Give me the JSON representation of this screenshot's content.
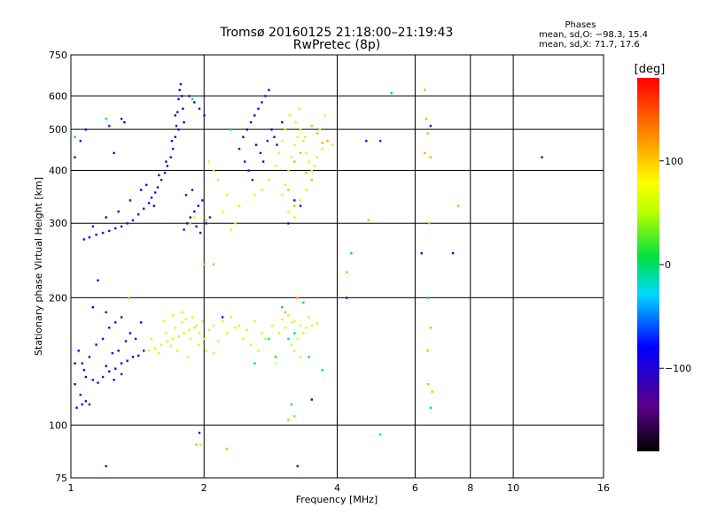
{
  "chart_data": {
    "type": "scatter",
    "title": "Tromsø 20160125 21:18:00–21:19:43",
    "subtitle": "RwPretec (8p)",
    "xlabel": "Frequency [MHz]",
    "ylabel": "Stationary phase Virtual Height [km]",
    "x_scale": "log",
    "y_scale": "log",
    "xlim": [
      1,
      16
    ],
    "ylim": [
      75,
      750
    ],
    "x_ticks": [
      1,
      2,
      4,
      6,
      8,
      10,
      16
    ],
    "y_ticks": [
      75,
      100,
      200,
      300,
      400,
      500,
      600,
      750
    ],
    "grid": true,
    "stats": {
      "header": "Phases",
      "line_o": "mean, sd,O: −98.3, 15.4",
      "line_x": "mean, sd,X:  71.7, 17.6"
    },
    "colorbar": {
      "label": "[deg]",
      "range": [
        -180,
        180
      ],
      "ticks": [
        100,
        0,
        -100
      ],
      "tick_labels": [
        "100",
        "0",
        "−100"
      ]
    },
    "series": [
      {
        "color_value": -100,
        "points": [
          [
            1.03,
            110
          ],
          [
            1.06,
            112
          ],
          [
            1.08,
            114
          ],
          [
            1.05,
            118
          ],
          [
            1.1,
            112
          ],
          [
            1.02,
            125
          ],
          [
            1.08,
            130
          ],
          [
            1.12,
            128
          ],
          [
            1.18,
            130
          ],
          [
            1.22,
            134
          ],
          [
            1.26,
            136
          ],
          [
            1.3,
            140
          ],
          [
            1.34,
            142
          ],
          [
            1.38,
            145
          ],
          [
            1.42,
            146
          ],
          [
            1.46,
            150
          ],
          [
            1.15,
            126
          ],
          [
            1.2,
            138
          ],
          [
            1.25,
            128
          ],
          [
            1.3,
            132
          ],
          [
            1.06,
            140
          ],
          [
            1.1,
            145
          ],
          [
            1.04,
            150
          ],
          [
            1.14,
            155
          ],
          [
            1.18,
            160
          ],
          [
            1.22,
            170
          ],
          [
            1.26,
            175
          ],
          [
            1.3,
            180
          ],
          [
            1.36,
            165
          ],
          [
            1.4,
            160
          ],
          [
            1.2,
            185
          ],
          [
            1.12,
            190
          ],
          [
            1.02,
            140
          ],
          [
            1.28,
            150
          ],
          [
            1.33,
            158
          ],
          [
            1.07,
            135
          ],
          [
            1.24,
            148
          ],
          [
            1.44,
            175
          ],
          [
            1.07,
            275
          ],
          [
            1.1,
            278
          ],
          [
            1.14,
            282
          ],
          [
            1.18,
            285
          ],
          [
            1.22,
            288
          ],
          [
            1.26,
            292
          ],
          [
            1.3,
            295
          ],
          [
            1.34,
            300
          ],
          [
            1.38,
            305
          ],
          [
            1.42,
            315
          ],
          [
            1.46,
            325
          ],
          [
            1.5,
            335
          ],
          [
            1.52,
            345
          ],
          [
            1.55,
            355
          ],
          [
            1.57,
            365
          ],
          [
            1.6,
            380
          ],
          [
            1.63,
            395
          ],
          [
            1.65,
            410
          ],
          [
            1.68,
            430
          ],
          [
            1.7,
            450
          ],
          [
            1.72,
            480
          ],
          [
            1.73,
            510
          ],
          [
            1.74,
            550
          ],
          [
            1.75,
            590
          ],
          [
            1.76,
            620
          ],
          [
            1.77,
            640
          ],
          [
            1.78,
            600
          ],
          [
            1.79,
            560
          ],
          [
            1.8,
            520
          ],
          [
            1.12,
            295
          ],
          [
            1.2,
            310
          ],
          [
            1.28,
            320
          ],
          [
            1.36,
            340
          ],
          [
            1.44,
            360
          ],
          [
            1.48,
            370
          ],
          [
            1.54,
            330
          ],
          [
            1.58,
            390
          ],
          [
            1.64,
            420
          ],
          [
            1.69,
            470
          ],
          [
            1.72,
            540
          ],
          [
            1.75,
            500
          ],
          [
            1.8,
            290
          ],
          [
            1.83,
            300
          ],
          [
            1.86,
            310
          ],
          [
            1.9,
            320
          ],
          [
            1.94,
            330
          ],
          [
            1.98,
            340
          ],
          [
            1.82,
            350
          ],
          [
            1.88,
            360
          ],
          [
            1.92,
            295
          ],
          [
            1.96,
            285
          ],
          [
            2.02,
            300
          ],
          [
            2.06,
            310
          ],
          [
            1.85,
            600
          ],
          [
            1.9,
            580
          ],
          [
            1.95,
            560
          ],
          [
            2.0,
            540
          ],
          [
            2.45,
            480
          ],
          [
            2.5,
            500
          ],
          [
            2.55,
            520
          ],
          [
            2.6,
            540
          ],
          [
            2.65,
            560
          ],
          [
            2.7,
            580
          ],
          [
            2.75,
            600
          ],
          [
            2.8,
            620
          ],
          [
            2.4,
            450
          ],
          [
            2.47,
            420
          ],
          [
            2.52,
            400
          ],
          [
            2.57,
            380
          ],
          [
            2.62,
            460
          ],
          [
            2.68,
            440
          ],
          [
            2.72,
            420
          ],
          [
            2.78,
            470
          ],
          [
            2.84,
            500
          ],
          [
            2.88,
            480
          ],
          [
            2.92,
            460
          ],
          [
            3.0,
            520
          ],
          [
            3.1,
            300
          ],
          [
            3.2,
            340
          ],
          [
            3.3,
            330
          ],
          [
            1.22,
            510
          ],
          [
            1.3,
            530
          ],
          [
            1.32,
            520
          ],
          [
            1.05,
            470
          ],
          [
            1.08,
            500
          ],
          [
            1.25,
            440
          ],
          [
            1.15,
            220
          ],
          [
            1.02,
            430
          ],
          [
            1.2,
            80
          ],
          [
            1.95,
            96
          ],
          [
            3.25,
            80
          ],
          [
            4.2,
            200
          ],
          [
            4.65,
            470
          ],
          [
            5.0,
            470
          ],
          [
            6.5,
            510
          ],
          [
            7.3,
            255
          ],
          [
            11.6,
            430
          ],
          [
            2.2,
            180
          ],
          [
            3.5,
            115
          ],
          [
            6.2,
            255
          ]
        ]
      },
      {
        "color_value": 60,
        "points": [
          [
            1.5,
            150
          ],
          [
            1.55,
            152
          ],
          [
            1.6,
            155
          ],
          [
            1.65,
            158
          ],
          [
            1.7,
            160
          ],
          [
            1.75,
            162
          ],
          [
            1.8,
            165
          ],
          [
            1.85,
            168
          ],
          [
            1.9,
            170
          ],
          [
            1.95,
            165
          ],
          [
            2.0,
            160
          ],
          [
            1.58,
            148
          ],
          [
            1.68,
            154
          ],
          [
            1.72,
            170
          ],
          [
            1.78,
            175
          ],
          [
            1.82,
            178
          ],
          [
            1.88,
            180
          ],
          [
            1.92,
            172
          ],
          [
            1.98,
            176
          ],
          [
            2.05,
            168
          ],
          [
            2.1,
            172
          ],
          [
            2.2,
            176
          ],
          [
            2.3,
            180
          ],
          [
            2.4,
            172
          ],
          [
            2.5,
            168
          ],
          [
            2.6,
            176
          ],
          [
            2.7,
            165
          ],
          [
            2.85,
            172
          ],
          [
            3.0,
            178
          ],
          [
            3.1,
            182
          ],
          [
            3.2,
            176
          ],
          [
            3.3,
            172
          ],
          [
            3.4,
            170
          ],
          [
            3.5,
            172
          ],
          [
            3.6,
            174
          ],
          [
            3.2,
            150
          ],
          [
            3.25,
            160
          ],
          [
            3.3,
            145
          ],
          [
            3.15,
            155
          ],
          [
            2.9,
            140
          ],
          [
            1.62,
            176
          ],
          [
            1.7,
            182
          ],
          [
            1.78,
            185
          ],
          [
            1.86,
            160
          ],
          [
            1.94,
            155
          ],
          [
            2.02,
            150
          ],
          [
            2.1,
            148
          ],
          [
            2.15,
            158
          ],
          [
            2.25,
            165
          ],
          [
            2.35,
            170
          ],
          [
            2.45,
            160
          ],
          [
            2.55,
            155
          ],
          [
            2.65,
            150
          ],
          [
            2.75,
            160
          ],
          [
            2.95,
            165
          ],
          [
            3.05,
            170
          ],
          [
            3.15,
            175
          ],
          [
            3.35,
            165
          ],
          [
            3.45,
            180
          ],
          [
            1.52,
            160
          ],
          [
            1.64,
            165
          ],
          [
            1.74,
            150
          ],
          [
            1.84,
            145
          ],
          [
            2.3,
            290
          ],
          [
            2.35,
            300
          ],
          [
            2.2,
            320
          ],
          [
            2.25,
            350
          ],
          [
            2.15,
            380
          ],
          [
            2.1,
            400
          ],
          [
            2.05,
            420
          ],
          [
            2.4,
            330
          ],
          [
            2.6,
            350
          ],
          [
            2.7,
            360
          ],
          [
            2.8,
            380
          ],
          [
            3.0,
            350
          ],
          [
            3.05,
            370
          ],
          [
            3.1,
            400
          ],
          [
            3.15,
            430
          ],
          [
            3.2,
            460
          ],
          [
            3.25,
            480
          ],
          [
            3.3,
            500
          ],
          [
            3.35,
            470
          ],
          [
            3.4,
            440
          ],
          [
            3.45,
            420
          ],
          [
            3.5,
            400
          ],
          [
            3.6,
            430
          ],
          [
            3.7,
            450
          ],
          [
            3.8,
            470
          ],
          [
            3.9,
            460
          ],
          [
            3.1,
            320
          ],
          [
            3.2,
            310
          ],
          [
            3.3,
            340
          ],
          [
            3.4,
            360
          ],
          [
            3.5,
            380
          ],
          [
            3.55,
            410
          ],
          [
            3.65,
            500
          ],
          [
            3.75,
            540
          ],
          [
            2.9,
            410
          ],
          [
            2.95,
            440
          ],
          [
            3.0,
            470
          ],
          [
            3.05,
            500
          ],
          [
            3.12,
            540
          ],
          [
            3.22,
            520
          ],
          [
            3.28,
            560
          ],
          [
            3.38,
            480
          ],
          [
            1.96,
            90
          ],
          [
            1.9,
            310
          ]
        ]
      },
      {
        "color_value": 110,
        "points": [
          [
            1.35,
            200
          ],
          [
            1.92,
            90
          ],
          [
            2.1,
            240
          ],
          [
            3.1,
            103
          ],
          [
            3.2,
            105
          ],
          [
            2.25,
            88
          ],
          [
            3.5,
            510
          ],
          [
            3.6,
            490
          ],
          [
            3.7,
            465
          ],
          [
            3.8,
            470
          ],
          [
            3.3,
            440
          ],
          [
            3.2,
            420
          ],
          [
            3.4,
            395
          ],
          [
            3.5,
            380
          ],
          [
            3.1,
            360
          ],
          [
            3.2,
            330
          ],
          [
            4.2,
            230
          ],
          [
            4.7,
            305
          ],
          [
            6.3,
            620
          ],
          [
            6.35,
            530
          ],
          [
            6.4,
            490
          ],
          [
            6.5,
            430
          ],
          [
            6.45,
            300
          ],
          [
            6.5,
            170
          ],
          [
            6.4,
            150
          ],
          [
            6.42,
            125
          ],
          [
            6.55,
            120
          ],
          [
            6.3,
            440
          ],
          [
            7.5,
            330
          ],
          [
            2.0,
            240
          ],
          [
            3.25,
            200
          ],
          [
            3.05,
            185
          ],
          [
            1.86,
            300
          ],
          [
            2.02,
            305
          ]
        ]
      },
      {
        "color_value": 0,
        "points": [
          [
            1.02,
            480
          ],
          [
            1.2,
            530
          ],
          [
            2.3,
            500
          ],
          [
            3.2,
            165
          ],
          [
            3.0,
            190
          ],
          [
            2.9,
            145
          ],
          [
            3.1,
            160
          ],
          [
            6.4,
            200
          ],
          [
            6.5,
            110
          ],
          [
            3.15,
            112
          ],
          [
            5.0,
            95
          ],
          [
            5.3,
            610
          ],
          [
            4.3,
            255
          ],
          [
            3.7,
            135
          ],
          [
            2.8,
            160
          ],
          [
            2.6,
            140
          ],
          [
            3.35,
            195
          ],
          [
            1.95,
            600
          ],
          [
            1.88,
            590
          ],
          [
            3.45,
            145
          ]
        ]
      }
    ]
  }
}
